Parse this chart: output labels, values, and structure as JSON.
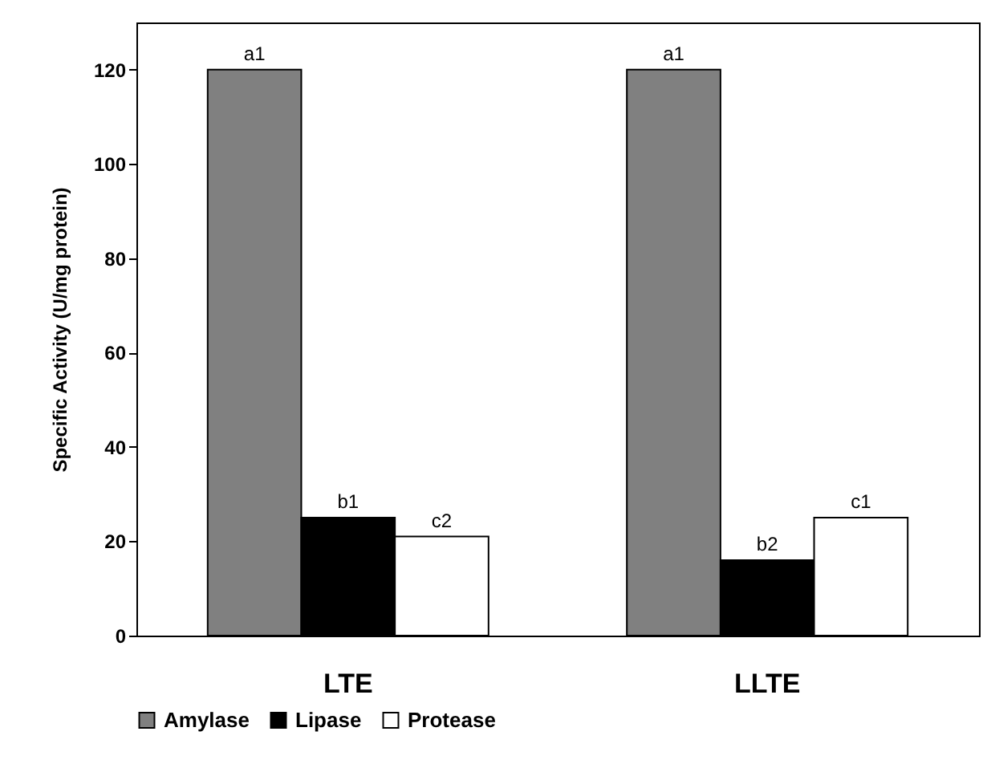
{
  "chart_data": {
    "type": "bar",
    "ylabel": "Specific Activity (U/mg protein)",
    "categories": [
      "LTE",
      "LLTE"
    ],
    "series": [
      {
        "name": "Amylase",
        "color": "#808080",
        "values": [
          120,
          120
        ]
      },
      {
        "name": "Lipase",
        "color": "#000000",
        "values": [
          25,
          16
        ]
      },
      {
        "name": "Protease",
        "color": "#ffffff",
        "values": [
          21,
          25
        ]
      }
    ],
    "ylim": [
      0,
      130
    ],
    "yticks": [
      0,
      20,
      40,
      60,
      80,
      100,
      120
    ],
    "legend": "bottom",
    "annotations": [
      "a1",
      "b1",
      "c2",
      "a1",
      "b2",
      "c1"
    ]
  }
}
